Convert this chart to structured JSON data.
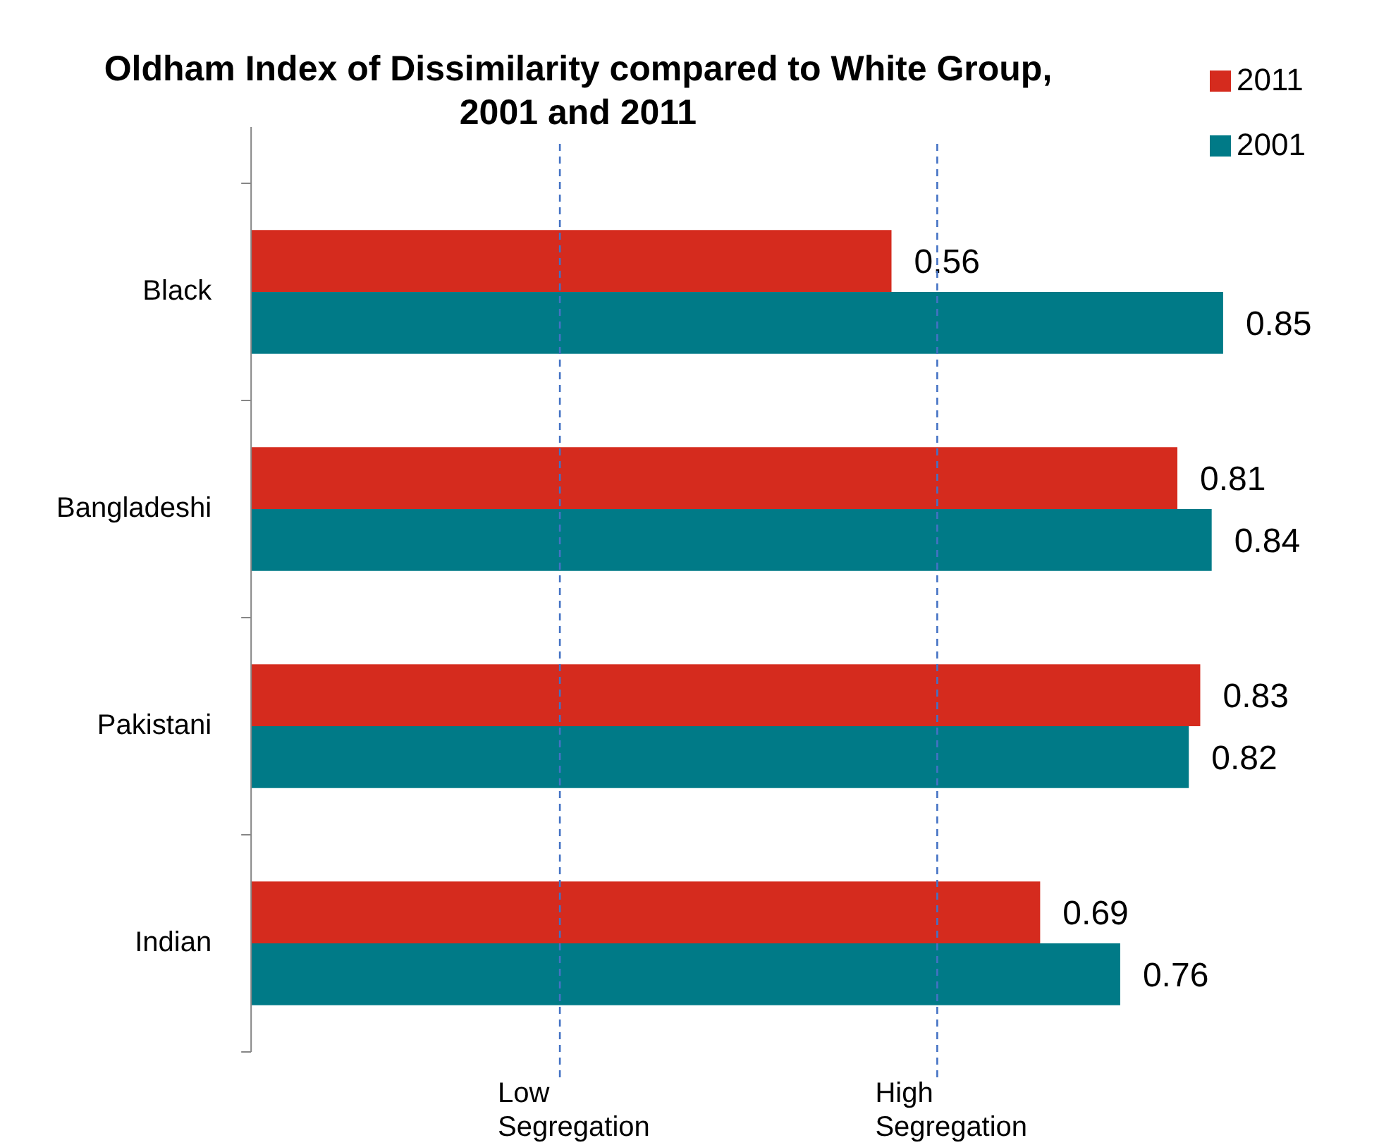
{
  "chart_data": {
    "type": "bar",
    "orientation": "horizontal",
    "title": "Oldham Index of Dissimilarity compared to White Group, 2001 and 2011",
    "categories": [
      "Black",
      "Bangladeshi",
      "Pakistani",
      "Indian"
    ],
    "series": [
      {
        "name": "2011",
        "color": "#d52b1e",
        "values": [
          0.56,
          0.81,
          0.83,
          0.69
        ]
      },
      {
        "name": "2001",
        "color": "#007a87",
        "values": [
          0.85,
          0.84,
          0.82,
          0.76
        ]
      }
    ],
    "data_labels": true,
    "legend": "top right",
    "ref_lines": [
      {
        "axis": "x",
        "value": 0.27,
        "label": "Low Segregation",
        "color": "#4472c4",
        "line_style": "dashed"
      },
      {
        "axis": "x",
        "value": 0.6,
        "label": "High Segregation",
        "color": "#4472c4",
        "line_style": "dashed"
      }
    ]
  }
}
